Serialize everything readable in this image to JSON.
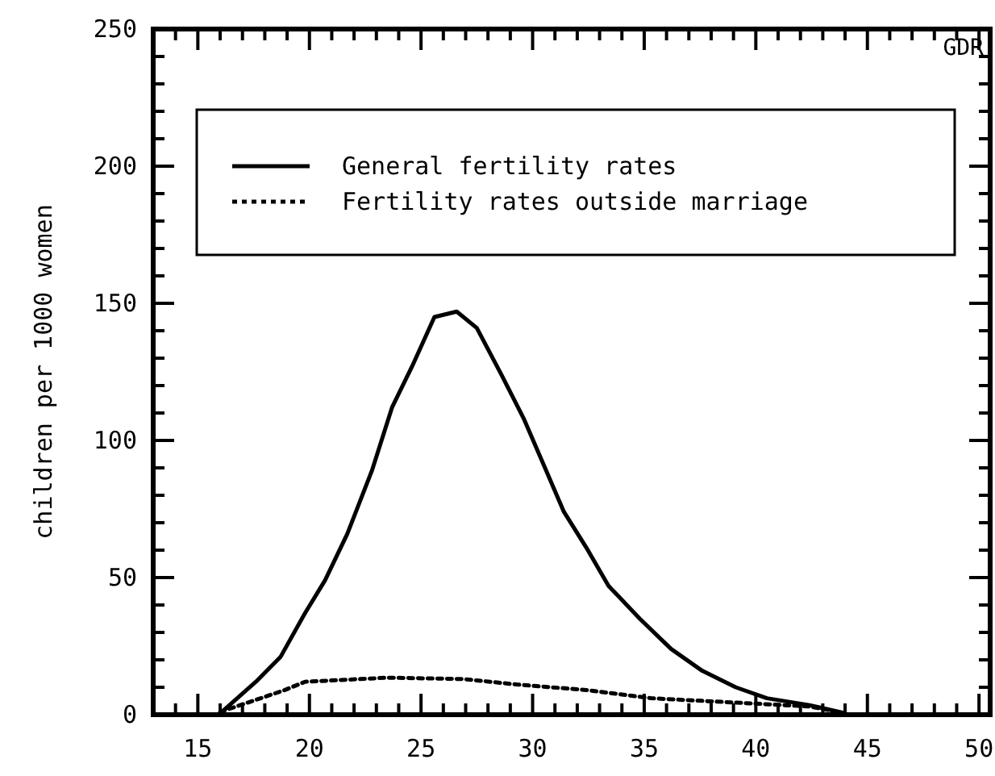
{
  "chart_data": {
    "type": "line",
    "ylabel": "children per 1000 women",
    "annotations": [
      "GDR"
    ],
    "xlim": [
      13,
      50.5
    ],
    "ylim": [
      0,
      250
    ],
    "xticks": [
      {
        "value": 13,
        "label": null
      },
      {
        "value": 14,
        "label": null
      },
      15,
      {
        "value": 16,
        "label": null
      },
      {
        "value": 17,
        "label": null
      },
      {
        "value": 18,
        "label": null
      },
      {
        "value": 19,
        "label": null
      },
      20,
      {
        "value": 21,
        "label": null
      },
      {
        "value": 22,
        "label": null
      },
      {
        "value": 23,
        "label": null
      },
      {
        "value": 24,
        "label": null
      },
      25,
      {
        "value": 26,
        "label": null
      },
      {
        "value": 27,
        "label": null
      },
      {
        "value": 28,
        "label": null
      },
      {
        "value": 29,
        "label": null
      },
      30,
      {
        "value": 31,
        "label": null
      },
      {
        "value": 32,
        "label": null
      },
      {
        "value": 33,
        "label": null
      },
      {
        "value": 34,
        "label": null
      },
      35,
      {
        "value": 36,
        "label": null
      },
      {
        "value": 37,
        "label": null
      },
      {
        "value": 38,
        "label": null
      },
      {
        "value": 39,
        "label": null
      },
      40,
      {
        "value": 41,
        "label": null
      },
      {
        "value": 42,
        "label": null
      },
      {
        "value": 43,
        "label": null
      },
      {
        "value": 44,
        "label": null
      },
      45,
      {
        "value": 46,
        "label": null
      },
      {
        "value": 47,
        "label": null
      },
      {
        "value": 48,
        "label": null
      },
      {
        "value": 49,
        "label": null
      },
      50
    ],
    "yticks": [
      0,
      {
        "value": 10,
        "label": null
      },
      {
        "value": 20,
        "label": null
      },
      {
        "value": 30,
        "label": null
      },
      {
        "value": 40,
        "label": null
      },
      50,
      {
        "value": 60,
        "label": null
      },
      {
        "value": 70,
        "label": null
      },
      {
        "value": 80,
        "label": null
      },
      {
        "value": 90,
        "label": null
      },
      100,
      {
        "value": 110,
        "label": null
      },
      {
        "value": 120,
        "label": null
      },
      {
        "value": 130,
        "label": null
      },
      {
        "value": 140,
        "label": null
      },
      150,
      {
        "value": 160,
        "label": null
      },
      {
        "value": 170,
        "label": null
      },
      {
        "value": 180,
        "label": null
      },
      {
        "value": 190,
        "label": null
      },
      200,
      {
        "value": 210,
        "label": null
      },
      {
        "value": 220,
        "label": null
      },
      {
        "value": 230,
        "label": null
      },
      {
        "value": 240,
        "label": null
      },
      250
    ],
    "grid": false,
    "legend": "top",
    "marker": "none",
    "series": [
      {
        "name": "General fertility rates",
        "color": "#000000",
        "line_style": "solid",
        "x": [
          16,
          17.6,
          18.7,
          19.8,
          20.7,
          21.7,
          22.8,
          23.7,
          24.6,
          25.6,
          26.6,
          27.5,
          28.6,
          29.6,
          30.5,
          31.4,
          32.4,
          33.4,
          34.8,
          36.2,
          37.6,
          39.1,
          40.5,
          42.4,
          44
        ],
        "values": [
          0.5,
          12,
          21,
          37,
          49,
          66,
          89,
          112,
          127,
          145,
          147,
          141,
          124,
          108,
          91,
          74,
          61,
          47,
          35,
          24,
          16,
          10,
          6,
          3.5,
          0.5
        ]
      },
      {
        "name": "Fertility rates outside marriage",
        "color": "#000000",
        "line_style": "dotted",
        "x": [
          16,
          18.9,
          19.8,
          23.5,
          26.9,
          29.3,
          32.4,
          35.3,
          38.9,
          42.4,
          44
        ],
        "values": [
          1,
          9,
          12,
          13.5,
          13,
          11,
          9,
          6,
          4.5,
          3,
          0.5
        ]
      }
    ]
  }
}
